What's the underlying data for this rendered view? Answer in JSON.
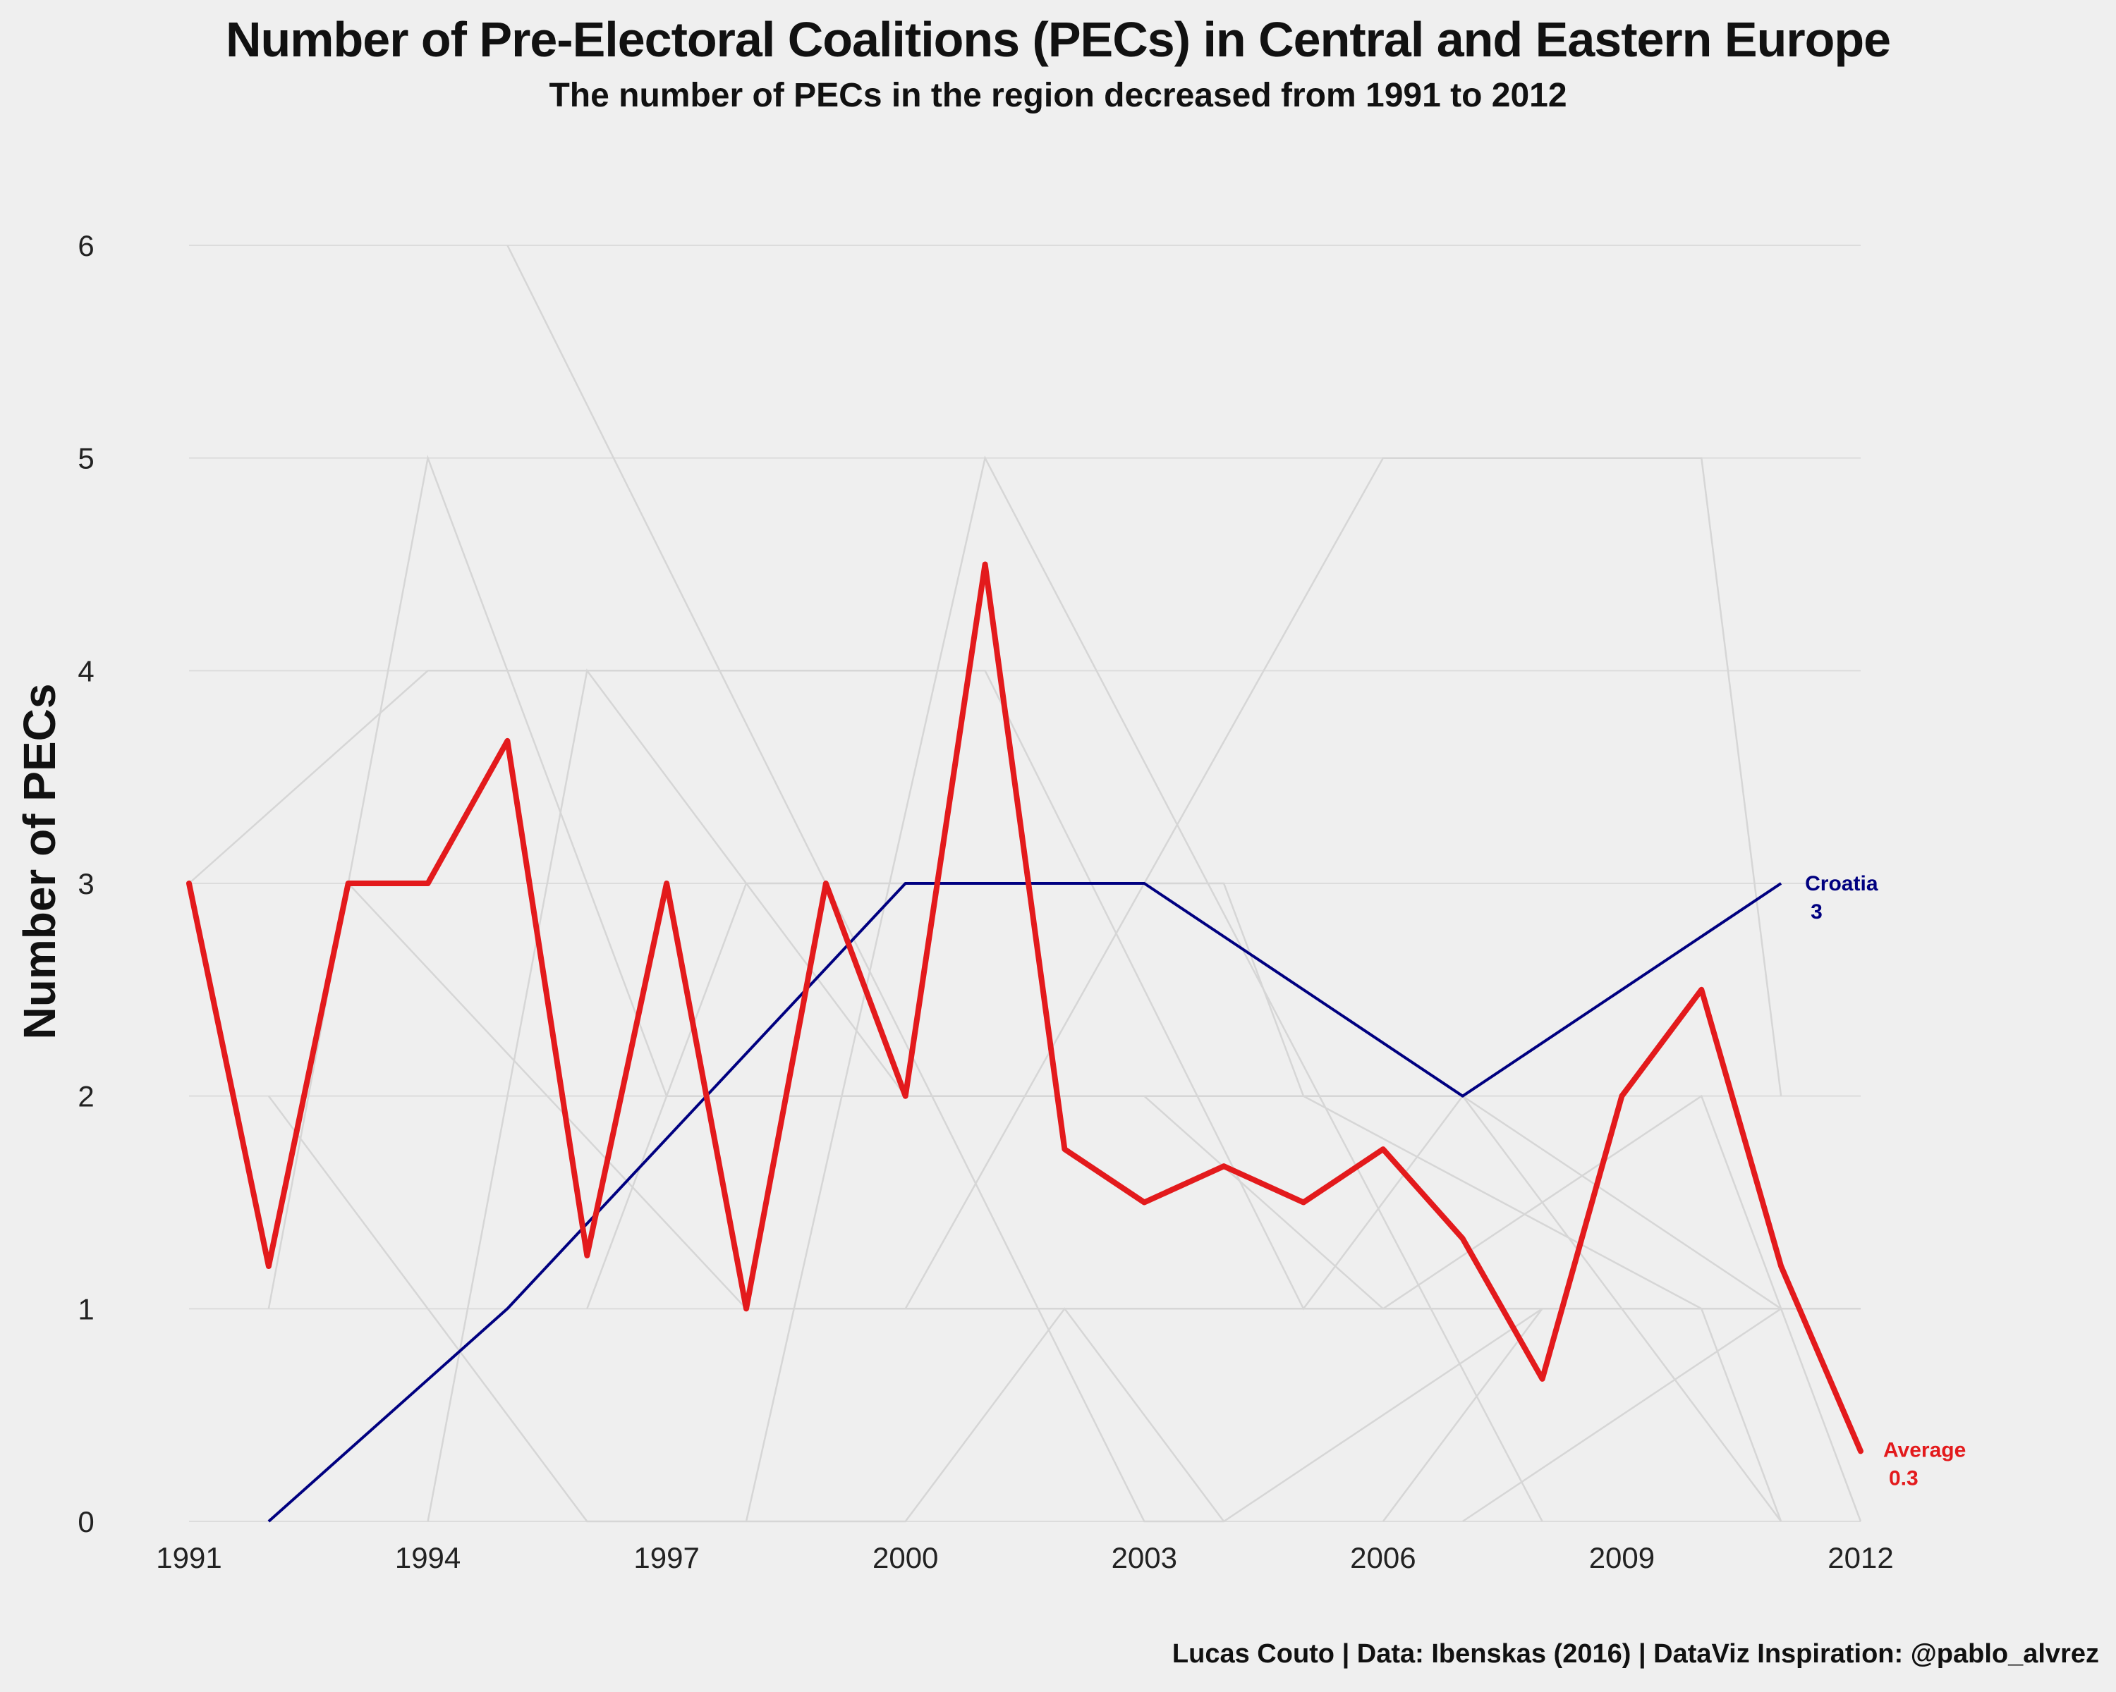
{
  "title": "Number of Pre-Electoral Coalitions (PECs) in Central and Eastern Europe",
  "subtitle": "The number of PECs in the region decreased from 1991 to 2012",
  "caption": "Lucas Couto | Data: Ibenskas (2016) | DataViz Inspiration: @pablo_alvrez",
  "colors": {
    "background": "#efefef",
    "average": "#e31a1c",
    "croatia": "#000080",
    "countries": "#d6d6d6",
    "grid": "#dcdcdc"
  },
  "chart_data": {
    "type": "line",
    "title": "Number of Pre-Electoral Coalitions (PECs) in Central and Eastern Europe",
    "xlabel": "",
    "ylabel": "Number of PECs",
    "xlim": [
      1991,
      2012
    ],
    "ylim": [
      0,
      6
    ],
    "x_ticks": [
      "1991",
      "1994",
      "1997",
      "2000",
      "2003",
      "2006",
      "2009",
      "2012"
    ],
    "y_ticks": [
      "0",
      "1",
      "2",
      "3",
      "4",
      "5",
      "6"
    ],
    "grid": "horizontal",
    "series": [
      {
        "name": "Average",
        "label_value": "0.3",
        "points": [
          [
            1991,
            3
          ],
          [
            1992,
            1.2
          ],
          [
            1993,
            3
          ],
          [
            1994,
            3
          ],
          [
            1995,
            3.67
          ],
          [
            1996,
            1.25
          ],
          [
            1997,
            3
          ],
          [
            1998,
            1
          ],
          [
            1999,
            3
          ],
          [
            2000,
            2
          ],
          [
            2001,
            4.5
          ],
          [
            2002,
            1.75
          ],
          [
            2003,
            1.5
          ],
          [
            2004,
            1.67
          ],
          [
            2005,
            1.5
          ],
          [
            2006,
            1.75
          ],
          [
            2007,
            1.33
          ],
          [
            2008,
            0.67
          ],
          [
            2009,
            2
          ],
          [
            2010,
            2.5
          ],
          [
            2011,
            1.2
          ],
          [
            2012,
            0.33
          ]
        ]
      },
      {
        "name": "Croatia",
        "label_value": "3",
        "points": [
          [
            1992,
            0
          ],
          [
            1995,
            1
          ],
          [
            2000,
            3
          ],
          [
            2003,
            3
          ],
          [
            2007,
            2
          ],
          [
            2011,
            3
          ]
        ]
      }
    ],
    "background_series": [
      {
        "name": "country-a",
        "points": [
          [
            1991,
            3
          ],
          [
            1994,
            4
          ],
          [
            2001,
            4
          ],
          [
            2005,
            1
          ],
          [
            2007,
            2
          ],
          [
            2011,
            0
          ]
        ]
      },
      {
        "name": "country-b",
        "points": [
          [
            1992,
            2
          ],
          [
            1996,
            0
          ],
          [
            2000,
            0
          ],
          [
            2002,
            1
          ],
          [
            2004,
            0
          ]
        ]
      },
      {
        "name": "country-c",
        "points": [
          [
            1992,
            1
          ],
          [
            1994,
            5
          ],
          [
            1997,
            2
          ],
          [
            2000,
            2
          ],
          [
            2003,
            2
          ],
          [
            2006,
            1
          ],
          [
            2010,
            2
          ],
          [
            2012,
            0
          ]
        ]
      },
      {
        "name": "country-d",
        "points": [
          [
            1995,
            6
          ],
          [
            2003,
            0
          ],
          [
            2004,
            0
          ],
          [
            2008,
            1
          ],
          [
            2012,
            1
          ]
        ]
      },
      {
        "name": "country-e",
        "points": [
          [
            1993,
            3
          ],
          [
            1998,
            1
          ],
          [
            2012,
            1
          ]
        ]
      },
      {
        "name": "country-f",
        "points": [
          [
            1994,
            0
          ],
          [
            1996,
            4
          ],
          [
            2000,
            2
          ],
          [
            2005,
            2
          ],
          [
            2007,
            2
          ],
          [
            2011,
            1
          ]
        ]
      },
      {
        "name": "country-g",
        "points": [
          [
            1996,
            1
          ],
          [
            1998,
            3
          ],
          [
            2004,
            3
          ],
          [
            2005,
            2
          ],
          [
            2010,
            1
          ],
          [
            2011,
            0
          ]
        ]
      },
      {
        "name": "country-h",
        "points": [
          [
            1998,
            0
          ],
          [
            2001,
            5
          ],
          [
            2008,
            0
          ]
        ]
      },
      {
        "name": "country-i",
        "points": [
          [
            2000,
            1
          ],
          [
            2006,
            5
          ],
          [
            2010,
            5
          ],
          [
            2011,
            2
          ]
        ]
      },
      {
        "name": "country-j",
        "points": [
          [
            2006,
            0
          ],
          [
            2008,
            1
          ],
          [
            2010,
            1
          ]
        ]
      },
      {
        "name": "country-k",
        "points": [
          [
            2007,
            0
          ],
          [
            2011,
            1
          ]
        ]
      }
    ]
  }
}
